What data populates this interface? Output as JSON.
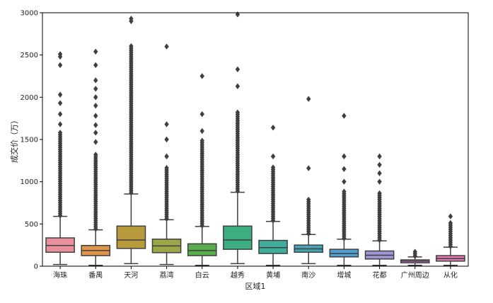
{
  "chart_data": {
    "type": "box",
    "xlabel": "区域1",
    "ylabel": "成交价（万）",
    "ylim": [
      0,
      3000
    ],
    "yticks": [
      0,
      500,
      1000,
      1500,
      2000,
      2500,
      3000
    ],
    "grid": false,
    "legend": "none",
    "categories": [
      "海珠",
      "番禺",
      "天河",
      "荔湾",
      "白云",
      "越秀",
      "黄埔",
      "南沙",
      "增城",
      "花都",
      "广州周边",
      "从化"
    ],
    "colors": [
      "#e8909c",
      "#e0954b",
      "#b89a3c",
      "#9ca747",
      "#59ae4c",
      "#3dae80",
      "#40ad9e",
      "#45a7b5",
      "#4f9fd5",
      "#a095d8",
      "#d97fd6",
      "#e47ab5"
    ],
    "boxes": [
      {
        "category": "海珠",
        "whisker_low": 20,
        "q1": 165,
        "median": 245,
        "q3": 335,
        "whisker_high": 590,
        "outliers_dense_from": 600,
        "outliers_dense_to": 1600,
        "outliers": [
          1680,
          1800,
          1930,
          2030,
          2380,
          2480,
          2510
        ]
      },
      {
        "category": "番禺",
        "whisker_low": 10,
        "q1": 125,
        "median": 185,
        "q3": 245,
        "whisker_high": 430,
        "outliers_dense_from": 440,
        "outliers_dense_to": 1320,
        "outliers": [
          1470,
          1580,
          1670,
          1780,
          1900,
          2000,
          2100,
          2200,
          2380,
          2540
        ]
      },
      {
        "category": "天河",
        "whisker_low": 30,
        "q1": 210,
        "median": 310,
        "q3": 475,
        "whisker_high": 855,
        "outliers_dense_from": 870,
        "outliers_dense_to": 2620,
        "outliers": [
          2900,
          2930
        ]
      },
      {
        "category": "荔湾",
        "whisker_low": 20,
        "q1": 160,
        "median": 240,
        "q3": 320,
        "whisker_high": 550,
        "outliers_dense_from": 560,
        "outliers_dense_to": 1180,
        "outliers": [
          1300,
          1500,
          1680,
          2600
        ]
      },
      {
        "category": "白云",
        "whisker_low": 10,
        "q1": 125,
        "median": 185,
        "q3": 265,
        "whisker_high": 470,
        "outliers_dense_from": 480,
        "outliers_dense_to": 1500,
        "outliers": [
          1600,
          1800,
          2250
        ]
      },
      {
        "category": "越秀",
        "whisker_low": 30,
        "q1": 200,
        "median": 310,
        "q3": 475,
        "whisker_high": 875,
        "outliers_dense_from": 890,
        "outliers_dense_to": 1830,
        "outliers": [
          2130,
          2330,
          2980
        ]
      },
      {
        "category": "黄埔",
        "whisker_low": 10,
        "q1": 150,
        "median": 220,
        "q3": 305,
        "whisker_high": 530,
        "outliers_dense_from": 540,
        "outliers_dense_to": 1180,
        "outliers": [
          1300,
          1640
        ]
      },
      {
        "category": "南沙",
        "whisker_low": 30,
        "q1": 165,
        "median": 205,
        "q3": 250,
        "whisker_high": 375,
        "outliers_dense_from": 385,
        "outliers_dense_to": 800,
        "outliers": [
          1160,
          1980
        ]
      },
      {
        "category": "增城",
        "whisker_low": 10,
        "q1": 110,
        "median": 150,
        "q3": 200,
        "whisker_high": 320,
        "outliers_dense_from": 330,
        "outliers_dense_to": 900,
        "outliers": [
          1000,
          1150,
          1300,
          1780
        ]
      },
      {
        "category": "花都",
        "whisker_low": 10,
        "q1": 85,
        "median": 130,
        "q3": 180,
        "whisker_high": 300,
        "outliers_dense_from": 310,
        "outliers_dense_to": 870,
        "outliers": [
          1000,
          1100,
          1200,
          1300
        ]
      },
      {
        "category": "广州周边",
        "whisker_low": 10,
        "q1": 40,
        "median": 60,
        "q3": 75,
        "whisker_high": 110,
        "outliers_dense_from": 120,
        "outliers_dense_to": 190,
        "outliers": []
      },
      {
        "category": "从化",
        "whisker_low": 10,
        "q1": 60,
        "median": 90,
        "q3": 125,
        "whisker_high": 225,
        "outliers_dense_from": 235,
        "outliers_dense_to": 520,
        "outliers": [
          590
        ]
      }
    ]
  }
}
